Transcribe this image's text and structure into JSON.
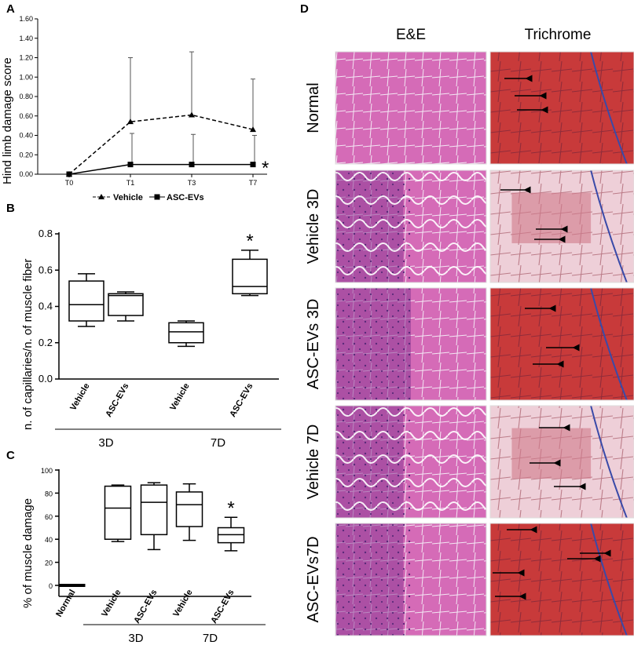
{
  "panels": {
    "A": "A",
    "B": "B",
    "C": "C",
    "D": "D"
  },
  "chart_data": [
    {
      "type": "line",
      "panel": "A",
      "ylabel": "Hind limb damage score",
      "xlabel": "",
      "categories": [
        "T0",
        "T1",
        "T3",
        "T7"
      ],
      "ylim": [
        0,
        1.6
      ],
      "yticks": [
        "0.00",
        "0.20",
        "0.40",
        "0.60",
        "0.80",
        "1.00",
        "1.20",
        "1.40",
        "1.60"
      ],
      "legend_position": "bottom",
      "series": [
        {
          "name": "Vehicle",
          "marker": "triangle",
          "line": "dashed",
          "values": [
            0,
            0.54,
            0.61,
            0.46
          ],
          "error_up": [
            0,
            0.66,
            0.65,
            0.52
          ]
        },
        {
          "name": "ASC-EVs",
          "marker": "square",
          "line": "solid",
          "values": [
            0,
            0.1,
            0.1,
            0.1
          ],
          "error_up": [
            0,
            0.32,
            0.31,
            0.3
          ]
        }
      ],
      "annotations": [
        {
          "text": "*",
          "at": "T7",
          "series": "ASC-EVs"
        }
      ]
    },
    {
      "type": "box",
      "panel": "B",
      "ylabel": "n. of capillaries/n. of muscle fiber",
      "ylim": [
        0,
        0.8
      ],
      "yticks": [
        "0.0",
        "0.2",
        "0.4",
        "0.6",
        "0.8"
      ],
      "categories": [
        "Vehicle",
        "ASC-EVs",
        "Vehicle",
        "ASC-EVs"
      ],
      "groups": [
        {
          "label": "3D",
          "span": [
            0,
            1
          ]
        },
        {
          "label": "7D",
          "span": [
            2,
            3
          ]
        }
      ],
      "boxes": [
        {
          "min": 0.29,
          "q1": 0.32,
          "median": 0.41,
          "q3": 0.54,
          "max": 0.58
        },
        {
          "min": 0.32,
          "q1": 0.35,
          "median": 0.46,
          "q3": 0.47,
          "max": 0.48
        },
        {
          "min": 0.18,
          "q1": 0.2,
          "median": 0.26,
          "q3": 0.31,
          "max": 0.32
        },
        {
          "min": 0.46,
          "q1": 0.47,
          "median": 0.51,
          "q3": 0.66,
          "max": 0.71
        }
      ],
      "annotations": [
        {
          "text": "*",
          "at": 3
        }
      ]
    },
    {
      "type": "box",
      "panel": "C",
      "ylabel": "% of muscle damage",
      "ylim": [
        0,
        100
      ],
      "yticks": [
        "0",
        "20",
        "40",
        "60",
        "80",
        "100"
      ],
      "categories": [
        "Normal",
        "Vehicle",
        "ASC-EVs",
        "Vehicle",
        "ASC-EVs"
      ],
      "groups": [
        {
          "label": "3D",
          "span": [
            1,
            2
          ]
        },
        {
          "label": "7D",
          "span": [
            3,
            4
          ]
        }
      ],
      "boxes": [
        {
          "min": 0,
          "q1": 0,
          "median": 0,
          "q3": 0,
          "max": 0
        },
        {
          "min": 38,
          "q1": 40,
          "median": 67,
          "q3": 86,
          "max": 87
        },
        {
          "min": 31,
          "q1": 44,
          "median": 72,
          "q3": 87,
          "max": 89
        },
        {
          "min": 39,
          "q1": 51,
          "median": 70,
          "q3": 81,
          "max": 88
        },
        {
          "min": 30,
          "q1": 37,
          "median": 44,
          "q3": 50,
          "max": 59
        }
      ],
      "annotations": [
        {
          "text": "*",
          "at": 4
        }
      ]
    }
  ],
  "histology": {
    "columns": [
      "E&E",
      "Trichrome"
    ],
    "rows": [
      "Normal",
      "Vehicle 3D",
      "ASC-EVs 3D",
      "Vehicle 7D",
      "ASC-EVs7D"
    ],
    "colors": {
      "he": "#d56bb7",
      "he_dark": "#8a3a96",
      "trichrome": "#c83a3a",
      "trichrome_light": "#eecfd8",
      "collagen": "#3a4aa8"
    }
  }
}
